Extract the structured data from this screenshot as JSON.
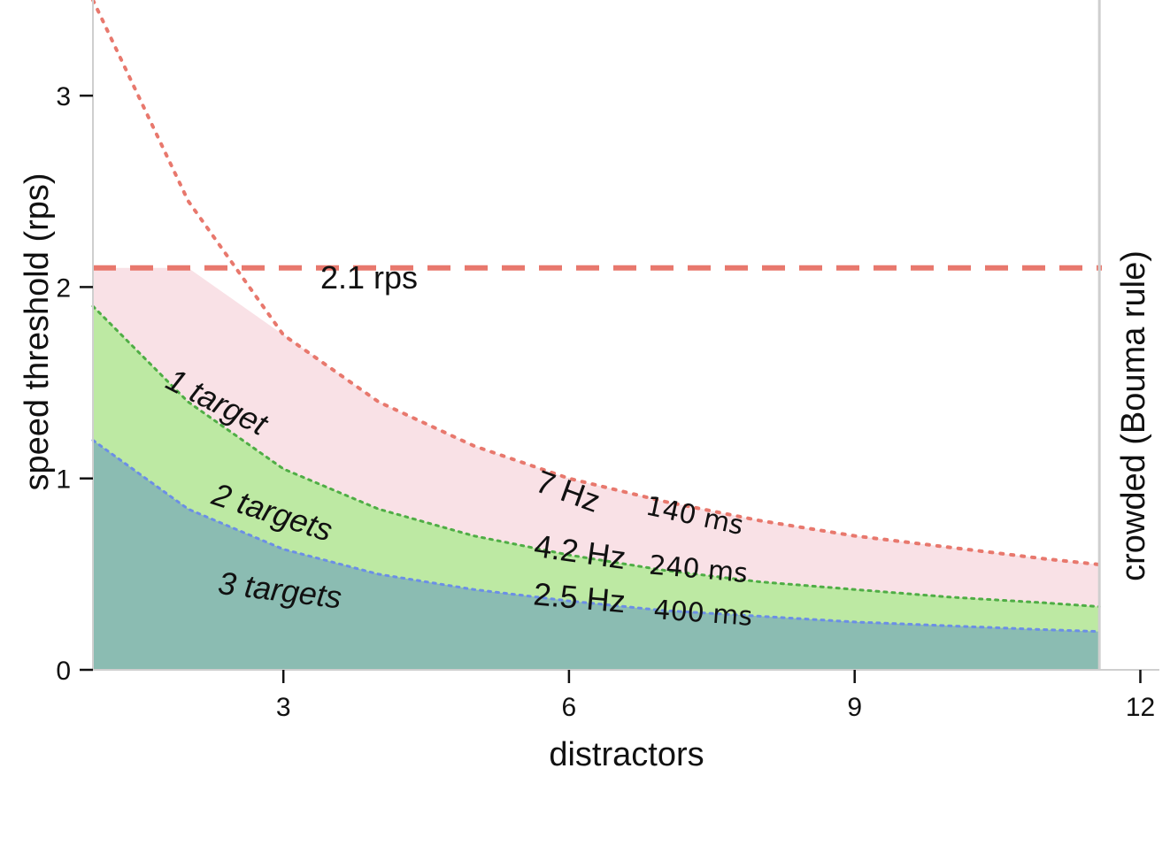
{
  "chart_data": {
    "type": "area",
    "xlabel": "distractors",
    "ylabel": "speed threshold (rps)",
    "xlim": [
      1,
      12.2
    ],
    "ylim": [
      0,
      3.5
    ],
    "xticks": [
      3,
      6,
      9,
      12
    ],
    "yticks": [
      0,
      1,
      2,
      3
    ],
    "xtick_labels": [
      "3",
      "6",
      "9",
      "12"
    ],
    "ytick_labels": [
      "0",
      "1",
      "2",
      "3"
    ],
    "grid": false,
    "x": [
      1,
      2,
      3,
      4,
      5,
      6,
      7,
      8,
      9,
      10,
      11,
      11.57
    ],
    "series": [
      {
        "name": "1 target",
        "color": "#f9e1e6",
        "line_color": "#e8786d",
        "values": [
          3.5,
          2.45,
          1.75,
          1.4,
          1.17,
          1.0,
          0.88,
          0.78,
          0.7,
          0.64,
          0.58,
          0.55
        ]
      },
      {
        "name": "2 targets",
        "color": "#bde9a3",
        "line_color": "#4fad45",
        "values": [
          1.9,
          1.4,
          1.05,
          0.84,
          0.7,
          0.6,
          0.52,
          0.46,
          0.42,
          0.38,
          0.35,
          0.33
        ]
      },
      {
        "name": "3 targets",
        "color": "#8bbcb2",
        "line_color": "#6b8ee6",
        "values": [
          1.2,
          0.84,
          0.63,
          0.5,
          0.42,
          0.36,
          0.31,
          0.28,
          0.25,
          0.23,
          0.21,
          0.2
        ]
      }
    ],
    "ceiling": {
      "value": 2.1,
      "label": "2.1 rps",
      "color": "#e8786d"
    },
    "vertical_line": {
      "x": 11.57,
      "label": "crowded (Bouma rule)",
      "color": "#cfcfcf"
    },
    "annotations": [
      {
        "id": "lbl1",
        "text": "1 target",
        "x": 2.25,
        "y": 1.35,
        "rotate": 27
      },
      {
        "id": "lbl2",
        "text": "2 targets",
        "x": 2.85,
        "y": 0.77,
        "rotate": 18
      },
      {
        "id": "lbl3",
        "text": "3 targets",
        "x": 2.95,
        "y": 0.36,
        "rotate": 7
      },
      {
        "id": "hz7",
        "text": "7 Hz",
        "x": 5.95,
        "y": 0.88,
        "rotate": 20
      },
      {
        "id": "ms140",
        "text": "140 ms",
        "x": 7.3,
        "y": 0.76,
        "rotate": 12
      },
      {
        "id": "hz42",
        "text": "4.2 Hz",
        "x": 6.1,
        "y": 0.56,
        "rotate": 8
      },
      {
        "id": "ms240",
        "text": "240 ms",
        "x": 7.35,
        "y": 0.48,
        "rotate": 5
      },
      {
        "id": "hz25",
        "text": "2.5 Hz",
        "x": 6.1,
        "y": 0.32,
        "rotate": 5
      },
      {
        "id": "ms400",
        "text": "400 ms",
        "x": 7.4,
        "y": 0.25,
        "rotate": 4
      }
    ]
  }
}
